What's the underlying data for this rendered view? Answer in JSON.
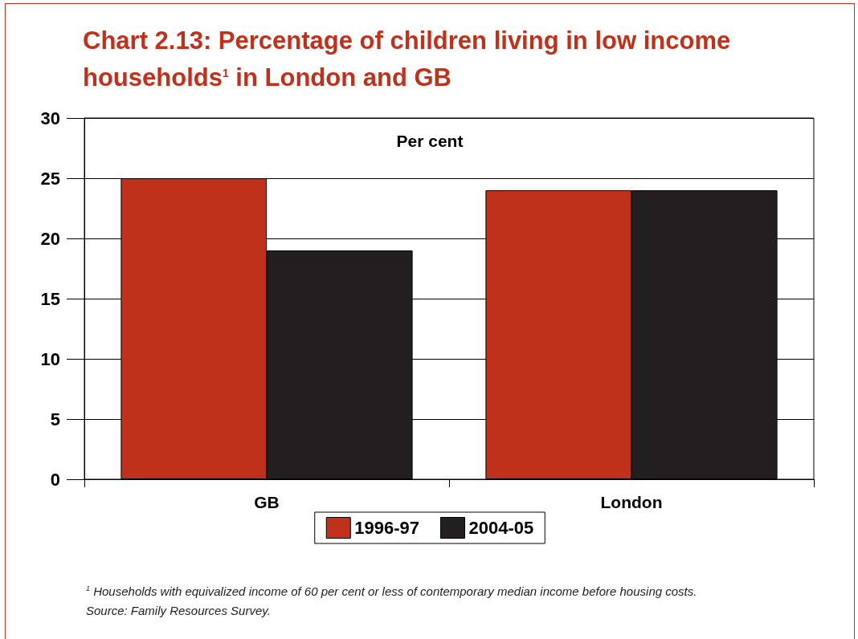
{
  "chart_data": {
    "type": "bar",
    "title": "Chart 2.13: Percentage of children living in low income households$^{1}$ in London and GB",
    "ylabel": "Per cent",
    "categories": [
      "GB",
      "London"
    ],
    "series": [
      {
        "name": "1996-97",
        "color": "#c0311c",
        "values": [
          25,
          24
        ]
      },
      {
        "name": "2004-05",
        "color": "#231f20",
        "values": [
          19,
          24
        ]
      }
    ],
    "ylim": [
      0,
      30
    ],
    "yticks": [
      0,
      5,
      10,
      15,
      20,
      25,
      30
    ],
    "grid": "y",
    "legend": "bottom",
    "annotations": [
      "$^{1}$ Households with equivalized income of 60 per cent or less of contemporary median income before housing costs.",
      "Source: Family Resources Survey."
    ]
  }
}
